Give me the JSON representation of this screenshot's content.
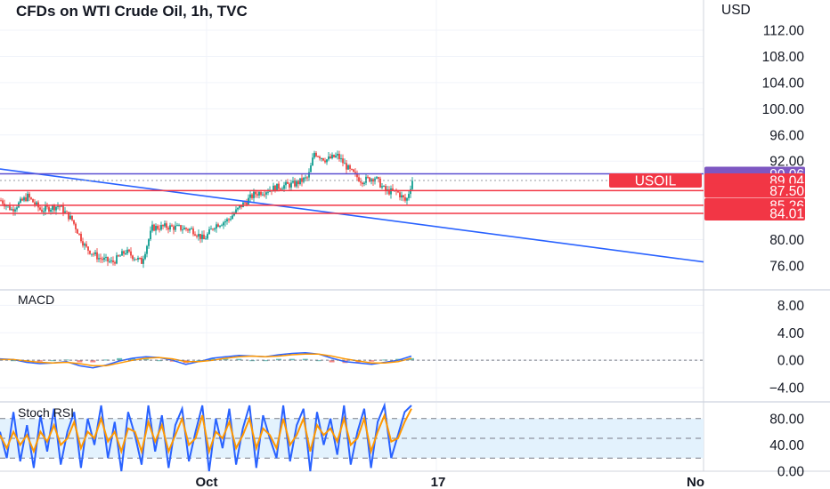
{
  "header": {
    "title": "CFDs on WTI Crude Oil, 1h, TVC"
  },
  "colors": {
    "up": "#26a69a",
    "down": "#ef5350",
    "trendline": "#2962ff",
    "level_line": "#f23645",
    "top_level_line": "#5b4fd1",
    "top_level_tag": "#7e57c2",
    "macd": "#2962ff",
    "signal": "#ff9800",
    "k": "#2962ff",
    "d": "#ff9800",
    "rsi_band": "#e3f2fd"
  },
  "chart_data": [
    {
      "type": "candlestick",
      "pane": "price",
      "axis_unit": "USD",
      "ylim": [
        74,
        114
      ],
      "y_ticks": [
        "112.00",
        "108.00",
        "104.00",
        "100.00",
        "96.00",
        "92.00",
        "80.00",
        "76.00"
      ],
      "y_tick_values": [
        112,
        108,
        104,
        100,
        96,
        92,
        80,
        76
      ],
      "x_ticks": [
        "Oct",
        "17",
        "No"
      ],
      "close_path": [
        {
          "t": 0,
          "v": 86.0
        },
        {
          "t": 12,
          "v": 84.6
        },
        {
          "t": 30,
          "v": 86.6
        },
        {
          "t": 45,
          "v": 84.5
        },
        {
          "t": 65,
          "v": 85.2
        },
        {
          "t": 80,
          "v": 83.0
        },
        {
          "t": 95,
          "v": 78.8
        },
        {
          "t": 110,
          "v": 77.2
        },
        {
          "t": 125,
          "v": 76.5
        },
        {
          "t": 140,
          "v": 78.2
        },
        {
          "t": 158,
          "v": 76.6
        },
        {
          "t": 170,
          "v": 81.8
        },
        {
          "t": 185,
          "v": 82.0
        },
        {
          "t": 200,
          "v": 81.8
        },
        {
          "t": 215,
          "v": 81.5
        },
        {
          "t": 228,
          "v": 80.0
        },
        {
          "t": 240,
          "v": 82.2
        },
        {
          "t": 255,
          "v": 83.0
        },
        {
          "t": 270,
          "v": 85.2
        },
        {
          "t": 285,
          "v": 87.0
        },
        {
          "t": 300,
          "v": 87.6
        },
        {
          "t": 315,
          "v": 88.2
        },
        {
          "t": 330,
          "v": 88.5
        },
        {
          "t": 345,
          "v": 89.5
        },
        {
          "t": 352,
          "v": 93.3
        },
        {
          "t": 365,
          "v": 92.2
        },
        {
          "t": 378,
          "v": 92.8
        },
        {
          "t": 392,
          "v": 90.5
        },
        {
          "t": 405,
          "v": 89.0
        },
        {
          "t": 420,
          "v": 89.5
        },
        {
          "t": 432,
          "v": 87.4
        },
        {
          "t": 445,
          "v": 87.3
        },
        {
          "t": 455,
          "v": 85.8
        },
        {
          "t": 462,
          "v": 89.1
        }
      ],
      "trendline": {
        "start": {
          "t": 0,
          "v": 90.8
        },
        "end": {
          "t": 790,
          "v": 76.6
        }
      },
      "price_levels": [
        {
          "value": 90.06,
          "label": "90.06",
          "style": "top"
        },
        {
          "value": 89.04,
          "label": "89.04",
          "symbol": "USOIL",
          "style": "last"
        },
        {
          "value": 87.5,
          "label": "87.50",
          "style": "level"
        },
        {
          "value": 85.26,
          "label": "85.26",
          "style": "level"
        },
        {
          "value": 84.01,
          "label": "84.01",
          "style": "level"
        }
      ]
    },
    {
      "type": "line",
      "pane": "macd",
      "title": "MACD",
      "ylim": [
        -5.8,
        9.6
      ],
      "y_ticks": [
        "8.00",
        "4.00",
        "0.00",
        "−4.00"
      ],
      "y_tick_values": [
        8,
        4,
        0,
        -4
      ],
      "series": [
        {
          "role": "macd",
          "values": [
            0.2,
            0.1,
            -0.3,
            -0.5,
            -0.4,
            -0.2,
            -0.8,
            -1.1,
            -0.7,
            -0.1,
            0.3,
            0.5,
            0.4,
            0.0,
            -0.6,
            -0.2,
            0.3,
            0.5,
            0.7,
            0.6,
            0.5,
            0.8,
            1.0,
            1.1,
            0.9,
            0.3,
            -0.2,
            -0.4,
            -0.6,
            -0.3,
            0.0,
            0.6
          ]
        },
        {
          "role": "signal",
          "values": [
            0.1,
            0.1,
            -0.1,
            -0.3,
            -0.4,
            -0.3,
            -0.5,
            -0.8,
            -0.8,
            -0.4,
            0.0,
            0.3,
            0.4,
            0.2,
            -0.2,
            -0.2,
            0.0,
            0.3,
            0.5,
            0.6,
            0.5,
            0.6,
            0.8,
            0.9,
            0.9,
            0.6,
            0.2,
            -0.1,
            -0.4,
            -0.4,
            -0.2,
            0.3
          ]
        }
      ]
    },
    {
      "type": "line",
      "pane": "stoch_rsi",
      "title": "Stoch RSI",
      "ylim": [
        0,
        100
      ],
      "y_ticks": [
        "80.00",
        "40.00",
        "0.00"
      ],
      "y_tick_values": [
        80,
        40,
        0
      ],
      "band": [
        20,
        80
      ],
      "series": [
        {
          "role": "k",
          "values": [
            60,
            20,
            90,
            15,
            70,
            5,
            85,
            30,
            95,
            10,
            60,
            90,
            5,
            80,
            40,
            100,
            20,
            75,
            0,
            90,
            55,
            10,
            100,
            30,
            85,
            5,
            70,
            95,
            15,
            60,
            100,
            0,
            80,
            35,
            95,
            10,
            65,
            100,
            5,
            85,
            50,
            20,
            100,
            15,
            70,
            95,
            0,
            90,
            40,
            80,
            25,
            100,
            10,
            60,
            95,
            5,
            75,
            100,
            20,
            55,
            90,
            100
          ]
        },
        {
          "role": "d",
          "values": [
            55,
            35,
            60,
            40,
            55,
            30,
            60,
            45,
            70,
            40,
            50,
            75,
            35,
            60,
            50,
            80,
            45,
            60,
            30,
            65,
            60,
            30,
            75,
            45,
            70,
            30,
            55,
            80,
            40,
            50,
            85,
            30,
            60,
            50,
            75,
            35,
            55,
            80,
            35,
            65,
            55,
            35,
            80,
            40,
            55,
            80,
            30,
            70,
            55,
            65,
            45,
            80,
            40,
            50,
            80,
            30,
            60,
            85,
            45,
            50,
            75,
            95
          ]
        }
      ]
    }
  ]
}
